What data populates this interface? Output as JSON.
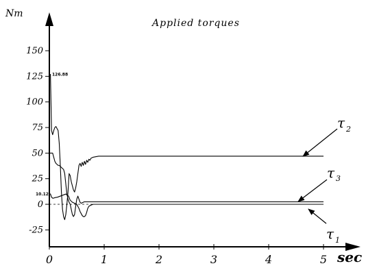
{
  "chart_data": {
    "type": "line",
    "title": "Applied torques",
    "ylabel": "Nm",
    "xlabel": "sec",
    "xlim": [
      0,
      5
    ],
    "ylim": [
      -40,
      160
    ],
    "xticks": [
      0,
      1,
      2,
      3,
      4,
      5
    ],
    "yticks": [
      -25,
      0,
      25,
      50,
      75,
      100,
      125,
      150
    ],
    "ytick_labels": [
      "-25",
      "0",
      "25",
      "50",
      "75",
      "100",
      "125",
      "150"
    ],
    "xtick_labels": [
      "0",
      "1",
      "2",
      "3",
      "4",
      "5"
    ],
    "annotations": [
      "126.88",
      "10.12"
    ],
    "series": [
      {
        "name": "τ2",
        "label_main": "τ",
        "label_sub": "2",
        "color": "#000000",
        "x": [
          0,
          0.02,
          0.04,
          0.06,
          0.08,
          0.1,
          0.12,
          0.14,
          0.16,
          0.18,
          0.2,
          0.22,
          0.24,
          0.26,
          0.28,
          0.3,
          0.32,
          0.34,
          0.36,
          0.38,
          0.4,
          0.42,
          0.44,
          0.46,
          0.48,
          0.5,
          0.52,
          0.54,
          0.56,
          0.58,
          0.6,
          0.62,
          0.64,
          0.66,
          0.68,
          0.7,
          0.72,
          0.74,
          0.76,
          0.8,
          0.85,
          0.9,
          0.95,
          1.0,
          1.2,
          2,
          3,
          4,
          5
        ],
        "y": [
          126.88,
          126.88,
          72,
          68,
          72,
          75,
          76,
          74,
          72,
          60,
          38,
          12,
          -5,
          -12,
          -15,
          -10,
          0,
          12,
          30,
          28,
          22,
          18,
          14,
          12,
          16,
          22,
          30,
          38,
          40,
          37,
          41,
          38,
          42,
          39,
          43,
          41,
          44,
          43,
          45,
          46,
          46.5,
          47,
          47,
          47,
          47,
          47,
          47,
          47,
          47
        ]
      },
      {
        "name": "τ3",
        "label_main": "τ",
        "label_sub": "3",
        "color": "#000000",
        "x": [
          0,
          0.04,
          0.06,
          0.08,
          0.1,
          0.12,
          0.14,
          0.16,
          0.18,
          0.2,
          0.22,
          0.24,
          0.26,
          0.28,
          0.3,
          0.32,
          0.34,
          0.36,
          0.38,
          0.4,
          0.42,
          0.44,
          0.46,
          0.48,
          0.5,
          0.52,
          0.54,
          0.56,
          0.58,
          0.6,
          0.62,
          0.64,
          0.66,
          0.68,
          0.7,
          0.72,
          0.74,
          0.76,
          0.8,
          1,
          2,
          3,
          4,
          5
        ],
        "y": [
          50,
          50,
          50,
          46,
          42,
          40,
          39,
          38,
          38,
          37,
          36,
          35,
          34,
          30,
          20,
          10,
          5,
          2,
          0,
          -5,
          -10,
          -12,
          -10,
          -2,
          5,
          8,
          5,
          2,
          1,
          1.5,
          2,
          2.5,
          2.5,
          2.5,
          2.5,
          2.5,
          2.5,
          2.5,
          2.5,
          2.5,
          2.5,
          2.5,
          2.5,
          2.5
        ]
      },
      {
        "name": "τ1",
        "label_main": "τ",
        "label_sub": "1",
        "color": "#000000",
        "x": [
          0,
          0.02,
          0.04,
          0.06,
          0.08,
          0.1,
          0.15,
          0.2,
          0.25,
          0.3,
          0.35,
          0.38,
          0.42,
          0.46,
          0.5,
          0.52,
          0.54,
          0.56,
          0.58,
          0.6,
          0.62,
          0.64,
          0.66,
          0.68,
          0.7,
          0.72,
          0.75,
          0.8,
          0.85,
          0.9,
          1,
          2,
          3,
          4,
          5
        ],
        "y": [
          10.12,
          10.12,
          7,
          6,
          6,
          6.5,
          7,
          8,
          9,
          10,
          8,
          4,
          2,
          1,
          0,
          -2,
          -4,
          -7,
          -9,
          -11,
          -12,
          -12,
          -11,
          -8,
          -4,
          -2,
          -1,
          0,
          0,
          0,
          0,
          0,
          0,
          0,
          0
        ]
      }
    ]
  }
}
